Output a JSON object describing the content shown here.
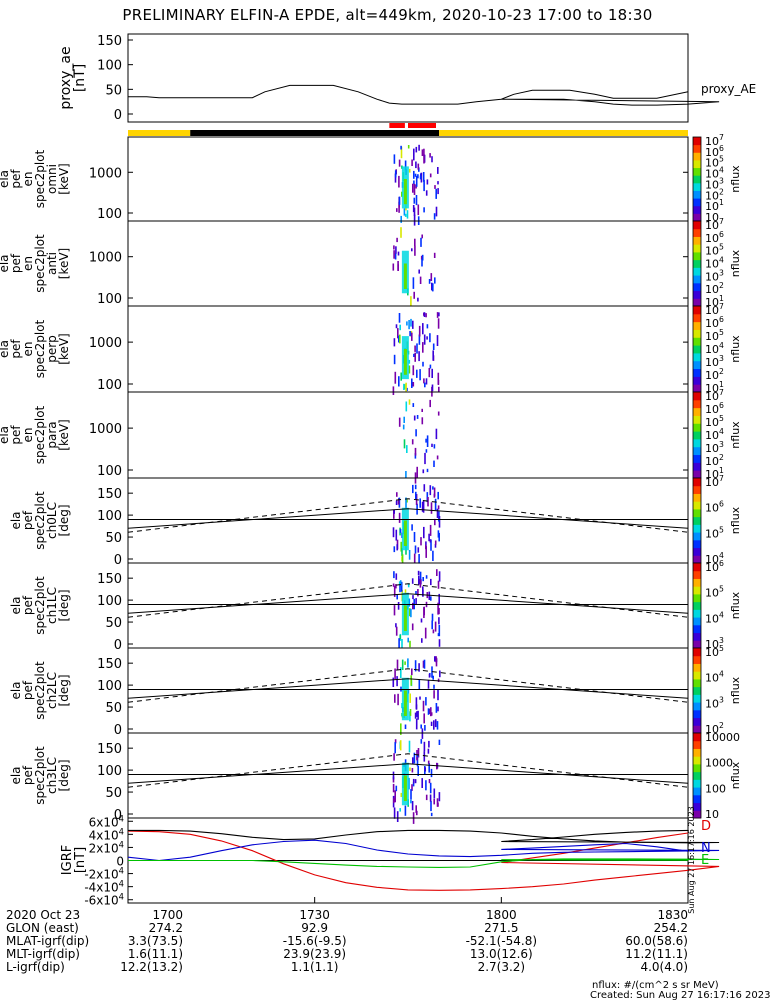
{
  "title": "PRELIMINARY ELFIN-A EPDE, alt=449km, 2020-10-23 17:00 to 18:30",
  "created": "Created: Sun Aug 27 16:17:16 2023",
  "side_stamp": "Sun Aug 27 16:17:16 2023",
  "nflux_units": "nflux: #/(cm^2 s sr MeV)",
  "colors": {
    "ae_line": "#000000",
    "yellow_bar": "#ffd400",
    "black_bar": "#000000",
    "red_marks": "#ff0000",
    "igrf_d": "#e00000",
    "igrf_n": "#0000d0",
    "igrf_e": "#00c000",
    "igrf_total": "#000000"
  },
  "bars": {
    "segments": [
      {
        "start": 1700,
        "end": 1710,
        "color": "yellow"
      },
      {
        "start": 1710,
        "end": 1750,
        "color": "black"
      },
      {
        "start": 1750,
        "end": 1830,
        "color": "yellow"
      }
    ],
    "red_marks": [
      {
        "start": 1742,
        "end": 1744.5
      },
      {
        "start": 1745,
        "end": 1749.5
      }
    ]
  },
  "footer": {
    "rows": [
      {
        "label": "2020 Oct 23",
        "values": [
          "1700",
          "1730",
          "1800",
          "1830"
        ]
      },
      {
        "label": "GLON (east)",
        "values": [
          "274.2",
          "92.9",
          "271.5",
          "254.2"
        ]
      },
      {
        "label": "MLAT-igrf(dip)",
        "values": [
          "3.3(73.5)",
          "-15.6(-9.5)",
          "-52.1(-54.8)",
          "60.0(58.6)"
        ]
      },
      {
        "label": "MLT-igrf(dip)",
        "values": [
          "1.6(11.1)",
          "23.9(23.9)",
          "13.0(12.6)",
          "11.2(11.1)"
        ]
      },
      {
        "label": "L-igrf(dip)",
        "values": [
          "12.2(13.2)",
          "1.1(1.1)",
          "2.7(3.2)",
          "4.0(4.0)"
        ]
      }
    ]
  },
  "chart_data": [
    {
      "type": "line",
      "ylabel": "proxy_ae\n[nT]",
      "ylim": [
        0,
        150
      ],
      "yticks": [
        0,
        50,
        100,
        150
      ],
      "legend": "proxy_AE",
      "x": [
        1700,
        1703,
        1705,
        1710,
        1713,
        1716,
        1720,
        1722,
        1726,
        1730,
        1733,
        1737,
        1740,
        1742,
        1744,
        1746,
        1750,
        1753,
        1756,
        1760,
        1762,
        1766,
        1770,
        1772,
        1775,
        1778,
        1781,
        1785,
        1790,
        1795,
        1800,
        1802,
        1805,
        1808,
        1811,
        1815,
        1818,
        1821,
        1825,
        1830
      ],
      "y": [
        35,
        35,
        33,
        33,
        33,
        33,
        33,
        45,
        58,
        58,
        58,
        45,
        30,
        22,
        20,
        20,
        20,
        20,
        25,
        30,
        30,
        30,
        30,
        28,
        25,
        20,
        18,
        18,
        20,
        25,
        30,
        40,
        48,
        48,
        48,
        40,
        32,
        32,
        32,
        45
      ]
    },
    {
      "type": "heatmap",
      "name": "omni",
      "ylabel": "ela\npef\nen\nspec2plot\nomni\n[keV]",
      "yscale": "log",
      "yticks": [
        100,
        1000
      ],
      "ytick_labels": [
        "100",
        "1000"
      ],
      "colorbar": {
        "label": "nflux",
        "ticks": [
          "10",
          "10^1",
          "10^2",
          "10^3",
          "10^4",
          "10^5",
          "10^6",
          "10^7"
        ]
      }
    },
    {
      "type": "heatmap",
      "name": "anti",
      "ylabel": "ela\npef\nen\nspec2plot\nanti\n[keV]",
      "yscale": "log",
      "yticks": [
        100,
        1000
      ],
      "ytick_labels": [
        "100",
        "1000"
      ],
      "colorbar": {
        "label": "nflux",
        "ticks": [
          "10^1",
          "10^2",
          "10^3",
          "10^4",
          "10^5",
          "10^6",
          "10^7"
        ]
      }
    },
    {
      "type": "heatmap",
      "name": "perp",
      "ylabel": "ela\npef\nen\nspec2plot\nperp\n[keV]",
      "yscale": "log",
      "yticks": [
        100,
        1000
      ],
      "ytick_labels": [
        "100",
        "1000"
      ],
      "colorbar": {
        "label": "nflux",
        "ticks": [
          "10^1",
          "10^2",
          "10^3",
          "10^4",
          "10^5",
          "10^6",
          "10^7"
        ]
      }
    },
    {
      "type": "heatmap",
      "name": "para",
      "ylabel": "ela\npef\nen\nspec2plot\npara\n[keV]",
      "yscale": "log",
      "yticks": [
        100,
        1000
      ],
      "ytick_labels": [
        "100",
        "1000"
      ],
      "colorbar": {
        "label": "nflux",
        "ticks": [
          "10^1",
          "10^2",
          "10^3",
          "10^4",
          "10^5",
          "10^6",
          "10^7"
        ]
      }
    },
    {
      "type": "heatmap",
      "name": "ch0LC",
      "ylabel": "ela\npef\nspec2plot\nch0LC\n[deg]",
      "ylim": [
        0,
        180
      ],
      "yticks": [
        0,
        50,
        100,
        150
      ],
      "colorbar": {
        "label": "nflux",
        "ticks": [
          "10^4",
          "10^5",
          "10^6",
          "10^7"
        ]
      }
    },
    {
      "type": "heatmap",
      "name": "ch1LC",
      "ylabel": "ela\npef\nspec2plot\nch1LC\n[deg]",
      "ylim": [
        0,
        180
      ],
      "yticks": [
        0,
        50,
        100,
        150
      ],
      "colorbar": {
        "label": "nflux",
        "ticks": [
          "10^3",
          "10^4",
          "10^5",
          "10^6"
        ]
      }
    },
    {
      "type": "heatmap",
      "name": "ch2LC",
      "ylabel": "ela\npef\nspec2plot\nch2LC\n[deg]",
      "ylim": [
        0,
        180
      ],
      "yticks": [
        0,
        50,
        100,
        150
      ],
      "colorbar": {
        "label": "nflux",
        "ticks": [
          "10^2",
          "10^3",
          "10^4",
          "10^5"
        ]
      }
    },
    {
      "type": "heatmap",
      "name": "ch3LC",
      "ylabel": "ela\npef\nspec2plot\nch3LC\n[deg]",
      "ylim": [
        0,
        180
      ],
      "yticks": [
        0,
        50,
        100,
        150
      ],
      "colorbar": {
        "label": "nflux",
        "ticks": [
          "10",
          "100",
          "1000",
          "10000"
        ]
      }
    },
    {
      "type": "line",
      "name": "IGRF",
      "ylabel": "IGRF\n[nT]",
      "ylim": [
        -65000,
        65000
      ],
      "yticks": [
        -60000,
        -40000,
        -20000,
        0,
        20000,
        40000,
        60000
      ],
      "ytick_labels": [
        "-6x10^4",
        "-4x10^4",
        "-2x10^4",
        "0",
        "2x10^4",
        "4x10^4",
        "6x10^4"
      ],
      "x": [
        1700,
        1705,
        1710,
        1715,
        1720,
        1725,
        1730,
        1735,
        1740,
        1745,
        1750,
        1755,
        1760,
        1765,
        1770,
        1775,
        1780,
        1785,
        1790,
        1795,
        1800,
        1805,
        1810,
        1815,
        1820,
        1825,
        1830
      ],
      "series": [
        {
          "name": "D",
          "values": [
            45000,
            44000,
            40000,
            30000,
            15000,
            -5000,
            -22000,
            -34000,
            -41000,
            -45000,
            -45500,
            -45000,
            -43000,
            -40000,
            -36000,
            -30000,
            -25000,
            -20000,
            -15000,
            -9000,
            -3000,
            4000,
            11000,
            19000,
            27000,
            35000,
            42000
          ]
        },
        {
          "name": "N",
          "values": [
            5000,
            0,
            5000,
            15000,
            24000,
            29000,
            31000,
            26000,
            16000,
            10000,
            7000,
            6000,
            8000,
            11000,
            12500,
            13000,
            13500,
            14000,
            14500,
            15500,
            17000,
            19000,
            21500,
            24000,
            26000,
            21000,
            14000
          ]
        },
        {
          "name": "E",
          "values": [
            0,
            0,
            0,
            0,
            0,
            -2000,
            -4500,
            -7000,
            -9000,
            -10000,
            -10500,
            -10000,
            -2000,
            1500,
            2500,
            2500,
            2500,
            2300,
            2000,
            1500,
            1200,
            1000,
            800,
            600,
            500,
            400,
            300
          ]
        },
        {
          "name": "total",
          "values": [
            46000,
            46000,
            45000,
            41000,
            35500,
            32000,
            33000,
            39000,
            44000,
            46000,
            46000,
            45000,
            42000,
            37000,
            33000,
            30000,
            28000,
            27500,
            27000,
            27500,
            29000,
            32000,
            36000,
            40000,
            43000,
            45000,
            46000
          ]
        }
      ],
      "legend": [
        "D",
        "N",
        "E"
      ]
    }
  ]
}
